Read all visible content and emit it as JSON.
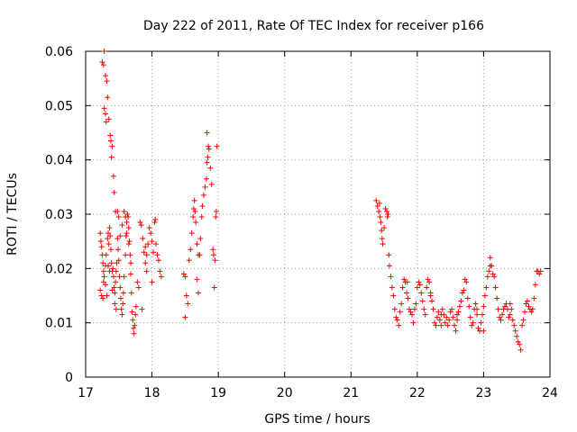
{
  "chart_data": {
    "type": "scatter",
    "title": "Day 222 of 2011, Rate Of TEC Index for receiver p166",
    "xlabel": "GPS time / hours",
    "ylabel": "ROTI / TECUs",
    "xlim": [
      17,
      24
    ],
    "ylim": [
      0,
      0.06
    ],
    "xticks": [
      17,
      18,
      19,
      20,
      21,
      22,
      23,
      24
    ],
    "yticks": [
      0,
      0.01,
      0.02,
      0.03,
      0.04,
      0.05,
      0.06
    ],
    "xtick_labels": [
      "17",
      "18",
      "19",
      "20",
      "21",
      "22",
      "23",
      "24"
    ],
    "ytick_labels": [
      "0",
      "0.01",
      "0.02",
      "0.03",
      "0.04",
      "0.05",
      "0.06"
    ],
    "grid": true,
    "marker": "+",
    "marker_color": "#ff0000",
    "series": [
      {
        "name": "p166",
        "points": [
          [
            17.25,
            0.058
          ],
          [
            17.27,
            0.0575
          ],
          [
            17.28,
            0.06
          ],
          [
            17.3,
            0.0555
          ],
          [
            17.32,
            0.0545
          ],
          [
            17.33,
            0.0515
          ],
          [
            17.28,
            0.0495
          ],
          [
            17.3,
            0.0485
          ],
          [
            17.31,
            0.047
          ],
          [
            17.35,
            0.0475
          ],
          [
            17.37,
            0.0445
          ],
          [
            17.38,
            0.0435
          ],
          [
            17.4,
            0.0425
          ],
          [
            17.39,
            0.0405
          ],
          [
            17.42,
            0.037
          ],
          [
            17.43,
            0.034
          ],
          [
            17.45,
            0.0305
          ],
          [
            17.22,
            0.0265
          ],
          [
            17.23,
            0.025
          ],
          [
            17.24,
            0.024
          ],
          [
            17.25,
            0.0225
          ],
          [
            17.26,
            0.021
          ],
          [
            17.27,
            0.0195
          ],
          [
            17.28,
            0.0185
          ],
          [
            17.22,
            0.016
          ],
          [
            17.24,
            0.015
          ],
          [
            17.26,
            0.0145
          ],
          [
            17.27,
            0.0175
          ],
          [
            17.3,
            0.0205
          ],
          [
            17.31,
            0.0225
          ],
          [
            17.33,
            0.0255
          ],
          [
            17.34,
            0.0265
          ],
          [
            17.35,
            0.0245
          ],
          [
            17.36,
            0.0275
          ],
          [
            17.37,
            0.026
          ],
          [
            17.38,
            0.0235
          ],
          [
            17.39,
            0.021
          ],
          [
            17.4,
            0.0195
          ],
          [
            17.41,
            0.02
          ],
          [
            17.42,
            0.0185
          ],
          [
            17.43,
            0.0165
          ],
          [
            17.44,
            0.0155
          ],
          [
            17.45,
            0.0175
          ],
          [
            17.46,
            0.0195
          ],
          [
            17.47,
            0.021
          ],
          [
            17.48,
            0.0255
          ],
          [
            17.49,
            0.0235
          ],
          [
            17.5,
            0.0215
          ],
          [
            17.51,
            0.0185
          ],
          [
            17.52,
            0.0165
          ],
          [
            17.53,
            0.0145
          ],
          [
            17.54,
            0.0125
          ],
          [
            17.55,
            0.0115
          ],
          [
            17.56,
            0.0135
          ],
          [
            17.57,
            0.0155
          ],
          [
            17.58,
            0.0185
          ],
          [
            17.6,
            0.0225
          ],
          [
            17.61,
            0.026
          ],
          [
            17.62,
            0.0285
          ],
          [
            17.63,
            0.03
          ],
          [
            17.64,
            0.0295
          ],
          [
            17.65,
            0.0275
          ],
          [
            17.66,
            0.025
          ],
          [
            17.67,
            0.0225
          ],
          [
            17.68,
            0.019
          ],
          [
            17.69,
            0.0155
          ],
          [
            17.7,
            0.012
          ],
          [
            17.71,
            0.0105
          ],
          [
            17.72,
            0.009
          ],
          [
            17.73,
            0.008
          ],
          [
            17.74,
            0.0095
          ],
          [
            17.75,
            0.0115
          ],
          [
            17.76,
            0.013
          ],
          [
            17.48,
            0.0305
          ],
          [
            17.5,
            0.0295
          ],
          [
            17.52,
            0.026
          ],
          [
            17.55,
            0.028
          ],
          [
            17.58,
            0.0305
          ],
          [
            17.6,
            0.0295
          ],
          [
            17.62,
            0.0265
          ],
          [
            17.65,
            0.0245
          ],
          [
            17.68,
            0.021
          ],
          [
            17.3,
            0.017
          ],
          [
            17.32,
            0.015
          ],
          [
            17.34,
            0.0205
          ],
          [
            17.36,
            0.0195
          ],
          [
            17.4,
            0.016
          ],
          [
            17.44,
            0.0135
          ],
          [
            17.46,
            0.0125
          ],
          [
            17.78,
            0.0175
          ],
          [
            17.8,
            0.0165
          ],
          [
            17.82,
            0.0285
          ],
          [
            17.84,
            0.028
          ],
          [
            17.86,
            0.0255
          ],
          [
            17.88,
            0.023
          ],
          [
            17.9,
            0.021
          ],
          [
            17.92,
            0.0195
          ],
          [
            17.94,
            0.0245
          ],
          [
            17.96,
            0.0275
          ],
          [
            17.98,
            0.0265
          ],
          [
            18.0,
            0.025
          ],
          [
            18.02,
            0.023
          ],
          [
            18.04,
            0.0285
          ],
          [
            18.05,
            0.029
          ],
          [
            18.06,
            0.0245
          ],
          [
            18.08,
            0.0225
          ],
          [
            18.1,
            0.0215
          ],
          [
            18.12,
            0.0195
          ],
          [
            18.14,
            0.0185
          ],
          [
            17.85,
            0.0125
          ],
          [
            17.9,
            0.024
          ],
          [
            17.92,
            0.0225
          ],
          [
            18.0,
            0.0175
          ],
          [
            18.48,
            0.019
          ],
          [
            18.5,
            0.0185
          ],
          [
            18.52,
            0.015
          ],
          [
            18.54,
            0.0135
          ],
          [
            18.5,
            0.011
          ],
          [
            18.56,
            0.0215
          ],
          [
            18.58,
            0.0235
          ],
          [
            18.6,
            0.0265
          ],
          [
            18.62,
            0.0295
          ],
          [
            18.63,
            0.031
          ],
          [
            18.64,
            0.0325
          ],
          [
            18.65,
            0.0305
          ],
          [
            18.66,
            0.0285
          ],
          [
            18.68,
            0.0245
          ],
          [
            18.7,
            0.0225
          ],
          [
            18.72,
            0.0225
          ],
          [
            18.68,
            0.018
          ],
          [
            18.7,
            0.0155
          ],
          [
            18.73,
            0.0255
          ],
          [
            18.75,
            0.0295
          ],
          [
            18.76,
            0.0315
          ],
          [
            18.78,
            0.0335
          ],
          [
            18.8,
            0.035
          ],
          [
            18.82,
            0.0365
          ],
          [
            18.83,
            0.0395
          ],
          [
            18.84,
            0.0405
          ],
          [
            18.85,
            0.0425
          ],
          [
            18.86,
            0.042
          ],
          [
            18.83,
            0.045
          ],
          [
            18.88,
            0.0385
          ],
          [
            18.9,
            0.0355
          ],
          [
            18.92,
            0.0235
          ],
          [
            18.93,
            0.0225
          ],
          [
            18.95,
            0.0215
          ],
          [
            18.96,
            0.0295
          ],
          [
            18.97,
            0.0305
          ],
          [
            18.98,
            0.0425
          ],
          [
            18.94,
            0.0165
          ],
          [
            21.38,
            0.0325
          ],
          [
            21.4,
            0.0315
          ],
          [
            21.42,
            0.0305
          ],
          [
            21.43,
            0.032
          ],
          [
            21.44,
            0.0295
          ],
          [
            21.45,
            0.0285
          ],
          [
            21.46,
            0.027
          ],
          [
            21.47,
            0.0255
          ],
          [
            21.48,
            0.0245
          ],
          [
            21.5,
            0.0275
          ],
          [
            21.52,
            0.031
          ],
          [
            21.54,
            0.0305
          ],
          [
            21.55,
            0.0295
          ],
          [
            21.56,
            0.03
          ],
          [
            21.57,
            0.0225
          ],
          [
            21.58,
            0.0205
          ],
          [
            21.6,
            0.0185
          ],
          [
            21.62,
            0.0165
          ],
          [
            21.64,
            0.015
          ],
          [
            21.66,
            0.0125
          ],
          [
            21.68,
            0.011
          ],
          [
            21.7,
            0.0105
          ],
          [
            21.72,
            0.0095
          ],
          [
            21.74,
            0.012
          ],
          [
            21.76,
            0.0135
          ],
          [
            21.78,
            0.0165
          ],
          [
            21.8,
            0.018
          ],
          [
            21.82,
            0.0175
          ],
          [
            21.84,
            0.0155
          ],
          [
            21.86,
            0.0145
          ],
          [
            21.88,
            0.0125
          ],
          [
            21.9,
            0.012
          ],
          [
            21.92,
            0.0115
          ],
          [
            21.94,
            0.01
          ],
          [
            21.96,
            0.0125
          ],
          [
            21.98,
            0.0135
          ],
          [
            22.0,
            0.0165
          ],
          [
            22.02,
            0.0175
          ],
          [
            22.04,
            0.017
          ],
          [
            22.06,
            0.0155
          ],
          [
            22.08,
            0.014
          ],
          [
            22.1,
            0.0125
          ],
          [
            22.12,
            0.0115
          ],
          [
            22.14,
            0.0165
          ],
          [
            22.16,
            0.018
          ],
          [
            22.18,
            0.0175
          ],
          [
            22.2,
            0.0155
          ],
          [
            22.22,
            0.014
          ],
          [
            22.24,
            0.0125
          ],
          [
            22.26,
            0.01
          ],
          [
            22.28,
            0.0095
          ],
          [
            22.3,
            0.011
          ],
          [
            22.32,
            0.012
          ],
          [
            22.34,
            0.0105
          ],
          [
            22.36,
            0.0115
          ],
          [
            22.38,
            0.0125
          ],
          [
            22.4,
            0.0115
          ],
          [
            22.42,
            0.01
          ],
          [
            22.44,
            0.011
          ],
          [
            22.46,
            0.0095
          ],
          [
            22.48,
            0.0105
          ],
          [
            22.5,
            0.012
          ],
          [
            22.52,
            0.0125
          ],
          [
            22.54,
            0.011
          ],
          [
            22.56,
            0.0095
          ],
          [
            22.58,
            0.0085
          ],
          [
            22.6,
            0.0105
          ],
          [
            22.62,
            0.012
          ],
          [
            22.64,
            0.013
          ],
          [
            22.66,
            0.014
          ],
          [
            22.68,
            0.0155
          ],
          [
            22.7,
            0.016
          ],
          [
            22.72,
            0.018
          ],
          [
            22.74,
            0.0175
          ],
          [
            22.76,
            0.0145
          ],
          [
            22.78,
            0.013
          ],
          [
            22.8,
            0.011
          ],
          [
            22.82,
            0.0095
          ],
          [
            22.84,
            0.01
          ],
          [
            22.86,
            0.0125
          ],
          [
            22.88,
            0.0135
          ],
          [
            22.9,
            0.0115
          ],
          [
            22.92,
            0.009
          ],
          [
            22.94,
            0.0085
          ],
          [
            22.96,
            0.01
          ],
          [
            22.98,
            0.0115
          ],
          [
            23.0,
            0.013
          ],
          [
            23.02,
            0.015
          ],
          [
            23.04,
            0.0165
          ],
          [
            23.06,
            0.0185
          ],
          [
            23.08,
            0.0195
          ],
          [
            23.1,
            0.022
          ],
          [
            23.12,
            0.0205
          ],
          [
            23.14,
            0.019
          ],
          [
            23.16,
            0.0185
          ],
          [
            23.18,
            0.0165
          ],
          [
            23.2,
            0.0145
          ],
          [
            23.22,
            0.0125
          ],
          [
            23.24,
            0.011
          ],
          [
            23.26,
            0.0105
          ],
          [
            23.28,
            0.0115
          ],
          [
            23.3,
            0.0125
          ],
          [
            23.32,
            0.013
          ],
          [
            23.34,
            0.0135
          ],
          [
            23.36,
            0.0125
          ],
          [
            23.38,
            0.011
          ],
          [
            23.4,
            0.0135
          ],
          [
            23.42,
            0.0125
          ],
          [
            23.44,
            0.0105
          ],
          [
            23.46,
            0.0095
          ],
          [
            23.48,
            0.0085
          ],
          [
            23.5,
            0.0075
          ],
          [
            23.52,
            0.0065
          ],
          [
            23.54,
            0.006
          ],
          [
            23.56,
            0.005
          ],
          [
            23.58,
            0.0095
          ],
          [
            23.6,
            0.0105
          ],
          [
            23.62,
            0.012
          ],
          [
            23.64,
            0.0135
          ],
          [
            23.66,
            0.014
          ],
          [
            23.68,
            0.013
          ],
          [
            23.7,
            0.0125
          ],
          [
            23.72,
            0.012
          ],
          [
            23.74,
            0.0125
          ],
          [
            23.76,
            0.0145
          ],
          [
            23.78,
            0.017
          ],
          [
            23.8,
            0.0195
          ],
          [
            23.82,
            0.0195
          ],
          [
            23.84,
            0.019
          ],
          [
            23.86,
            0.0195
          ],
          [
            22.2,
            0.015
          ],
          [
            22.6,
            0.0115
          ],
          [
            23.0,
            0.0085
          ],
          [
            23.4,
            0.0115
          ],
          [
            23.1,
            0.0205
          ],
          [
            21.85,
            0.0175
          ],
          [
            22.36,
            0.0095
          ],
          [
            22.9,
            0.0125
          ]
        ]
      }
    ]
  }
}
